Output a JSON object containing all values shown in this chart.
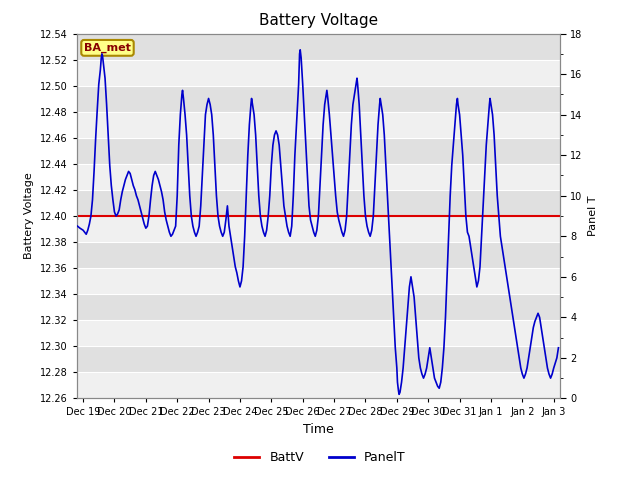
{
  "title": "Battery Voltage",
  "xlabel": "Time",
  "ylabel_left": "Battery Voltage",
  "ylabel_right": "Panel T",
  "batt_v_value": 12.4,
  "ylim_left": [
    12.26,
    12.54
  ],
  "ylim_right": [
    0,
    18
  ],
  "yticks_left": [
    12.26,
    12.28,
    12.3,
    12.32,
    12.34,
    12.36,
    12.38,
    12.4,
    12.42,
    12.44,
    12.46,
    12.48,
    12.5,
    12.52,
    12.54
  ],
  "yticks_right": [
    0,
    2,
    4,
    6,
    8,
    10,
    12,
    14,
    16,
    18
  ],
  "batt_color": "#dd0000",
  "panel_color": "#0000cc",
  "fig_bg_color": "#ffffff",
  "plot_bg_color": "#e8e8e8",
  "band_light": "#f0f0f0",
  "band_dark": "#e0e0e0",
  "annotation_text": "BA_met",
  "annotation_fg": "#880000",
  "annotation_bg": "#ffff88",
  "annotation_border": "#aa8800",
  "legend_items": [
    "BattV",
    "PanelT"
  ],
  "x_start": 18.8,
  "x_end": 34.2,
  "xtick_positions": [
    19,
    20,
    21,
    22,
    23,
    24,
    25,
    26,
    27,
    28,
    29,
    30,
    31,
    32,
    33,
    34
  ],
  "xtick_labels": [
    "Dec 19",
    "Dec 20",
    "Dec 21",
    "Dec 22",
    "Dec 23",
    "Dec 24",
    "Dec 25",
    "Dec 26",
    "Dec 27",
    "Dec 28",
    "Dec 29",
    "Dec 30",
    "Dec 31",
    "Jan 1",
    "Jan 2",
    "Jan 3"
  ],
  "panel_t_data": [
    [
      18.82,
      8.5
    ],
    [
      18.9,
      8.4
    ],
    [
      19.0,
      8.3
    ],
    [
      19.05,
      8.2
    ],
    [
      19.1,
      8.1
    ],
    [
      19.15,
      8.3
    ],
    [
      19.2,
      8.6
    ],
    [
      19.25,
      9.0
    ],
    [
      19.3,
      9.8
    ],
    [
      19.35,
      11.2
    ],
    [
      19.4,
      12.8
    ],
    [
      19.45,
      14.2
    ],
    [
      19.5,
      15.5
    ],
    [
      19.55,
      16.2
    ],
    [
      19.58,
      16.8
    ],
    [
      19.6,
      17.0
    ],
    [
      19.62,
      16.9
    ],
    [
      19.65,
      16.5
    ],
    [
      19.7,
      15.8
    ],
    [
      19.75,
      14.5
    ],
    [
      19.8,
      13.0
    ],
    [
      19.85,
      11.5
    ],
    [
      19.9,
      10.5
    ],
    [
      19.95,
      9.8
    ],
    [
      20.0,
      9.2
    ],
    [
      20.05,
      9.0
    ],
    [
      20.1,
      9.1
    ],
    [
      20.15,
      9.3
    ],
    [
      20.2,
      9.8
    ],
    [
      20.25,
      10.2
    ],
    [
      20.3,
      10.5
    ],
    [
      20.35,
      10.8
    ],
    [
      20.4,
      11.0
    ],
    [
      20.45,
      11.2
    ],
    [
      20.5,
      11.1
    ],
    [
      20.55,
      10.8
    ],
    [
      20.6,
      10.5
    ],
    [
      20.65,
      10.3
    ],
    [
      20.7,
      10.0
    ],
    [
      20.75,
      9.8
    ],
    [
      20.8,
      9.5
    ],
    [
      20.85,
      9.2
    ],
    [
      20.9,
      8.9
    ],
    [
      20.95,
      8.6
    ],
    [
      21.0,
      8.4
    ],
    [
      21.05,
      8.5
    ],
    [
      21.1,
      9.0
    ],
    [
      21.15,
      9.8
    ],
    [
      21.2,
      10.5
    ],
    [
      21.25,
      11.0
    ],
    [
      21.3,
      11.2
    ],
    [
      21.35,
      11.0
    ],
    [
      21.4,
      10.8
    ],
    [
      21.45,
      10.5
    ],
    [
      21.5,
      10.2
    ],
    [
      21.55,
      9.8
    ],
    [
      21.6,
      9.2
    ],
    [
      21.65,
      8.8
    ],
    [
      21.7,
      8.5
    ],
    [
      21.75,
      8.2
    ],
    [
      21.8,
      8.0
    ],
    [
      21.85,
      8.1
    ],
    [
      21.9,
      8.3
    ],
    [
      21.95,
      8.5
    ],
    [
      22.0,
      10.0
    ],
    [
      22.05,
      12.5
    ],
    [
      22.1,
      14.0
    ],
    [
      22.15,
      15.0
    ],
    [
      22.17,
      15.2
    ],
    [
      22.2,
      14.8
    ],
    [
      22.25,
      14.0
    ],
    [
      22.3,
      13.0
    ],
    [
      22.35,
      11.5
    ],
    [
      22.4,
      10.0
    ],
    [
      22.45,
      9.0
    ],
    [
      22.5,
      8.5
    ],
    [
      22.55,
      8.2
    ],
    [
      22.6,
      8.0
    ],
    [
      22.65,
      8.2
    ],
    [
      22.7,
      8.5
    ],
    [
      22.75,
      9.5
    ],
    [
      22.8,
      11.0
    ],
    [
      22.85,
      12.5
    ],
    [
      22.9,
      14.0
    ],
    [
      22.95,
      14.5
    ],
    [
      23.0,
      14.8
    ],
    [
      23.05,
      14.5
    ],
    [
      23.1,
      14.0
    ],
    [
      23.15,
      13.0
    ],
    [
      23.2,
      11.5
    ],
    [
      23.25,
      10.0
    ],
    [
      23.3,
      9.0
    ],
    [
      23.35,
      8.5
    ],
    [
      23.4,
      8.2
    ],
    [
      23.45,
      8.0
    ],
    [
      23.5,
      8.2
    ],
    [
      23.55,
      8.8
    ],
    [
      23.6,
      9.5
    ],
    [
      23.65,
      8.5
    ],
    [
      23.7,
      8.0
    ],
    [
      23.75,
      7.5
    ],
    [
      23.8,
      7.0
    ],
    [
      23.85,
      6.5
    ],
    [
      23.9,
      6.2
    ],
    [
      23.95,
      5.8
    ],
    [
      24.0,
      5.5
    ],
    [
      24.05,
      5.8
    ],
    [
      24.1,
      6.5
    ],
    [
      24.15,
      8.0
    ],
    [
      24.2,
      10.0
    ],
    [
      24.25,
      12.0
    ],
    [
      24.3,
      13.5
    ],
    [
      24.35,
      14.5
    ],
    [
      24.37,
      14.8
    ],
    [
      24.4,
      14.5
    ],
    [
      24.45,
      14.0
    ],
    [
      24.5,
      13.0
    ],
    [
      24.55,
      11.5
    ],
    [
      24.6,
      10.0
    ],
    [
      24.65,
      9.0
    ],
    [
      24.7,
      8.5
    ],
    [
      24.75,
      8.2
    ],
    [
      24.8,
      8.0
    ],
    [
      24.85,
      8.3
    ],
    [
      24.9,
      9.0
    ],
    [
      24.95,
      10.0
    ],
    [
      25.0,
      11.5
    ],
    [
      25.05,
      12.5
    ],
    [
      25.1,
      13.0
    ],
    [
      25.15,
      13.2
    ],
    [
      25.2,
      13.0
    ],
    [
      25.25,
      12.5
    ],
    [
      25.3,
      11.5
    ],
    [
      25.35,
      10.5
    ],
    [
      25.4,
      9.5
    ],
    [
      25.45,
      9.0
    ],
    [
      25.5,
      8.5
    ],
    [
      25.55,
      8.2
    ],
    [
      25.6,
      8.0
    ],
    [
      25.65,
      8.5
    ],
    [
      25.7,
      10.0
    ],
    [
      25.75,
      12.0
    ],
    [
      25.8,
      13.5
    ],
    [
      25.85,
      15.0
    ],
    [
      25.87,
      15.5
    ],
    [
      25.9,
      17.0
    ],
    [
      25.92,
      17.2
    ],
    [
      25.95,
      16.8
    ],
    [
      26.0,
      15.5
    ],
    [
      26.05,
      14.0
    ],
    [
      26.1,
      12.5
    ],
    [
      26.15,
      11.0
    ],
    [
      26.2,
      9.5
    ],
    [
      26.25,
      8.8
    ],
    [
      26.3,
      8.5
    ],
    [
      26.35,
      8.2
    ],
    [
      26.4,
      8.0
    ],
    [
      26.45,
      8.3
    ],
    [
      26.5,
      9.0
    ],
    [
      26.55,
      10.5
    ],
    [
      26.6,
      12.0
    ],
    [
      26.65,
      13.5
    ],
    [
      26.7,
      14.5
    ],
    [
      26.75,
      15.0
    ],
    [
      26.77,
      15.2
    ],
    [
      26.8,
      14.8
    ],
    [
      26.85,
      14.0
    ],
    [
      26.9,
      13.0
    ],
    [
      26.95,
      12.0
    ],
    [
      27.0,
      11.0
    ],
    [
      27.05,
      10.0
    ],
    [
      27.1,
      9.2
    ],
    [
      27.15,
      8.8
    ],
    [
      27.2,
      8.5
    ],
    [
      27.25,
      8.2
    ],
    [
      27.3,
      8.0
    ],
    [
      27.35,
      8.3
    ],
    [
      27.4,
      9.0
    ],
    [
      27.45,
      10.5
    ],
    [
      27.5,
      12.0
    ],
    [
      27.55,
      13.5
    ],
    [
      27.6,
      14.5
    ],
    [
      27.65,
      15.0
    ],
    [
      27.7,
      15.5
    ],
    [
      27.73,
      15.8
    ],
    [
      27.75,
      15.5
    ],
    [
      27.8,
      14.5
    ],
    [
      27.85,
      13.0
    ],
    [
      27.9,
      11.5
    ],
    [
      27.95,
      10.0
    ],
    [
      28.0,
      9.0
    ],
    [
      28.05,
      8.5
    ],
    [
      28.1,
      8.2
    ],
    [
      28.15,
      8.0
    ],
    [
      28.2,
      8.3
    ],
    [
      28.25,
      9.0
    ],
    [
      28.3,
      10.5
    ],
    [
      28.35,
      12.0
    ],
    [
      28.4,
      13.5
    ],
    [
      28.45,
      14.5
    ],
    [
      28.47,
      14.8
    ],
    [
      28.5,
      14.5
    ],
    [
      28.55,
      14.0
    ],
    [
      28.6,
      13.0
    ],
    [
      28.65,
      11.5
    ],
    [
      28.7,
      10.0
    ],
    [
      28.75,
      8.5
    ],
    [
      28.8,
      7.0
    ],
    [
      28.85,
      5.5
    ],
    [
      28.9,
      4.0
    ],
    [
      28.95,
      2.5
    ],
    [
      29.0,
      1.5
    ],
    [
      29.02,
      0.8
    ],
    [
      29.05,
      0.4
    ],
    [
      29.07,
      0.2
    ],
    [
      29.1,
      0.3
    ],
    [
      29.15,
      0.8
    ],
    [
      29.2,
      1.5
    ],
    [
      29.25,
      2.5
    ],
    [
      29.3,
      3.5
    ],
    [
      29.35,
      4.5
    ],
    [
      29.4,
      5.5
    ],
    [
      29.45,
      6.0
    ],
    [
      29.5,
      5.5
    ],
    [
      29.55,
      5.0
    ],
    [
      29.6,
      4.0
    ],
    [
      29.65,
      3.0
    ],
    [
      29.7,
      2.0
    ],
    [
      29.75,
      1.5
    ],
    [
      29.8,
      1.2
    ],
    [
      29.85,
      1.0
    ],
    [
      29.9,
      1.2
    ],
    [
      29.95,
      1.5
    ],
    [
      30.0,
      2.0
    ],
    [
      30.05,
      2.5
    ],
    [
      30.1,
      2.0
    ],
    [
      30.15,
      1.5
    ],
    [
      30.2,
      1.0
    ],
    [
      30.25,
      0.8
    ],
    [
      30.3,
      0.6
    ],
    [
      30.35,
      0.5
    ],
    [
      30.4,
      0.8
    ],
    [
      30.45,
      1.5
    ],
    [
      30.5,
      2.5
    ],
    [
      30.55,
      4.0
    ],
    [
      30.6,
      6.0
    ],
    [
      30.65,
      8.0
    ],
    [
      30.7,
      10.0
    ],
    [
      30.75,
      11.5
    ],
    [
      30.8,
      12.5
    ],
    [
      30.85,
      13.5
    ],
    [
      30.9,
      14.5
    ],
    [
      30.93,
      14.8
    ],
    [
      30.95,
      14.5
    ],
    [
      31.0,
      14.0
    ],
    [
      31.05,
      13.0
    ],
    [
      31.1,
      12.0
    ],
    [
      31.15,
      10.5
    ],
    [
      31.2,
      9.0
    ],
    [
      31.25,
      8.2
    ],
    [
      31.3,
      8.0
    ],
    [
      31.35,
      7.5
    ],
    [
      31.4,
      7.0
    ],
    [
      31.45,
      6.5
    ],
    [
      31.5,
      6.0
    ],
    [
      31.55,
      5.5
    ],
    [
      31.6,
      5.8
    ],
    [
      31.65,
      6.5
    ],
    [
      31.7,
      8.0
    ],
    [
      31.75,
      9.5
    ],
    [
      31.8,
      11.0
    ],
    [
      31.85,
      12.5
    ],
    [
      31.9,
      13.5
    ],
    [
      31.95,
      14.5
    ],
    [
      31.97,
      14.8
    ],
    [
      32.0,
      14.5
    ],
    [
      32.05,
      14.0
    ],
    [
      32.1,
      13.0
    ],
    [
      32.15,
      11.5
    ],
    [
      32.2,
      10.0
    ],
    [
      32.25,
      9.0
    ],
    [
      32.3,
      8.0
    ],
    [
      32.35,
      7.5
    ],
    [
      32.4,
      7.0
    ],
    [
      32.45,
      6.5
    ],
    [
      32.5,
      6.0
    ],
    [
      32.55,
      5.5
    ],
    [
      32.6,
      5.0
    ],
    [
      32.65,
      4.5
    ],
    [
      32.7,
      4.0
    ],
    [
      32.75,
      3.5
    ],
    [
      32.8,
      3.0
    ],
    [
      32.85,
      2.5
    ],
    [
      32.9,
      2.0
    ],
    [
      32.95,
      1.5
    ],
    [
      33.0,
      1.2
    ],
    [
      33.05,
      1.0
    ],
    [
      33.1,
      1.2
    ],
    [
      33.15,
      1.5
    ],
    [
      33.2,
      2.0
    ],
    [
      33.25,
      2.5
    ],
    [
      33.3,
      3.0
    ],
    [
      33.35,
      3.5
    ],
    [
      33.4,
      3.8
    ],
    [
      33.45,
      4.0
    ],
    [
      33.5,
      4.2
    ],
    [
      33.55,
      4.0
    ],
    [
      33.6,
      3.5
    ],
    [
      33.65,
      3.0
    ],
    [
      33.7,
      2.5
    ],
    [
      33.75,
      2.0
    ],
    [
      33.8,
      1.5
    ],
    [
      33.85,
      1.2
    ],
    [
      33.9,
      1.0
    ],
    [
      33.95,
      1.2
    ],
    [
      34.0,
      1.5
    ],
    [
      34.1,
      2.0
    ],
    [
      34.15,
      2.5
    ]
  ]
}
